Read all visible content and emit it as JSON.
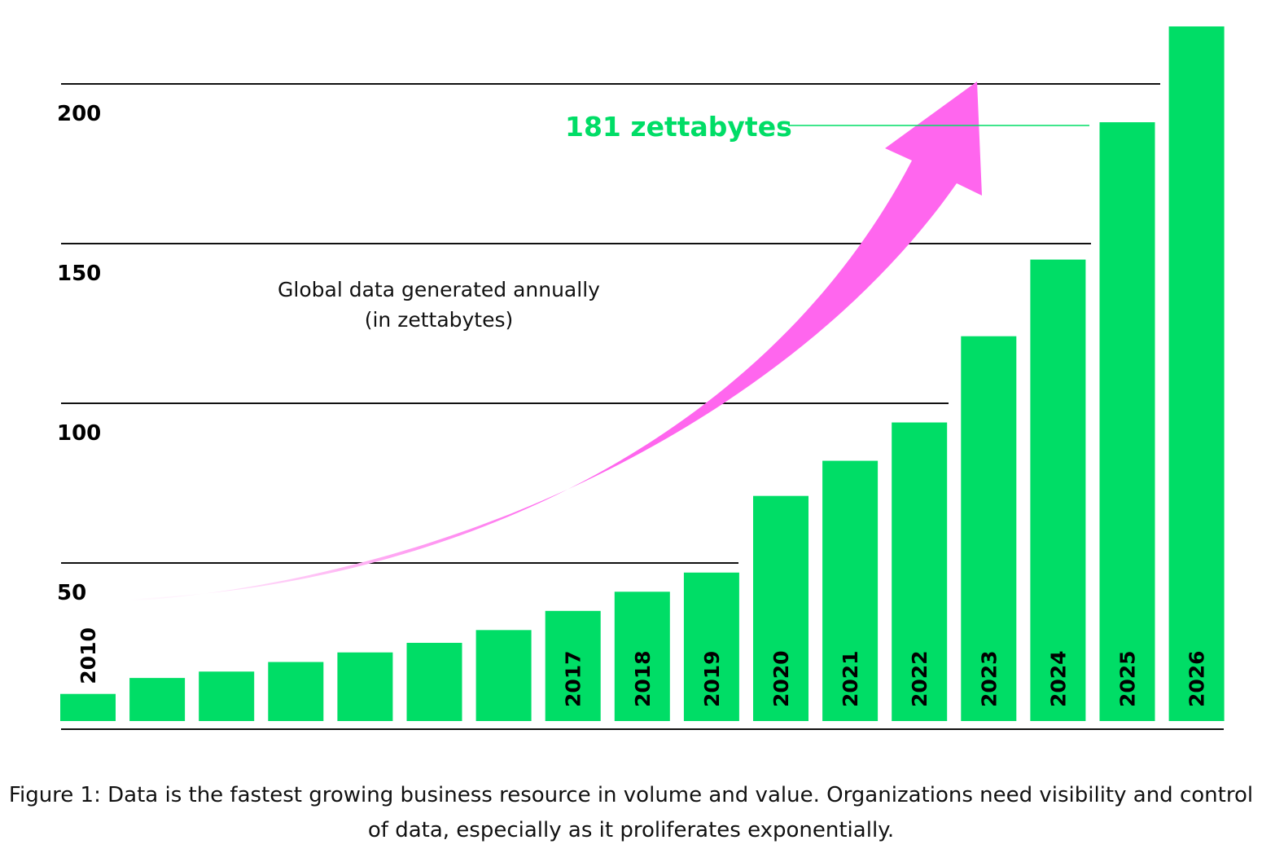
{
  "chart_data": {
    "type": "bar",
    "categories": [
      "2010",
      "",
      "",
      "",
      "",
      "",
      "",
      "2017",
      "2018",
      "2019",
      "2020",
      "2021",
      "2022",
      "2023",
      "2024",
      "2025",
      "2026"
    ],
    "values": [
      9,
      14,
      16,
      19,
      22,
      25,
      29,
      35,
      41,
      47,
      71,
      82,
      94,
      121,
      145,
      188,
      218
    ],
    "title": "Global data generated annually",
    "subtitle": "(in zettabytes)",
    "xlabel": "",
    "ylabel": "",
    "ylim": [
      0,
      220
    ],
    "yticks": [
      50,
      100,
      150,
      200
    ],
    "ytick_labels": [
      "50",
      "100",
      "150",
      "200"
    ],
    "grid": true,
    "annotation": {
      "text": "181 zettabytes",
      "value": 181
    },
    "arrow": "exponential growth arrow",
    "colors": {
      "bar": "#00dd66",
      "annotation": "#00dd66",
      "arrow": "#ff66ee"
    }
  },
  "caption": "Figure 1: Data is the fastest growing business resource in volume and value. Organizations need visibility and control of data, especially as it proliferates exponentially."
}
